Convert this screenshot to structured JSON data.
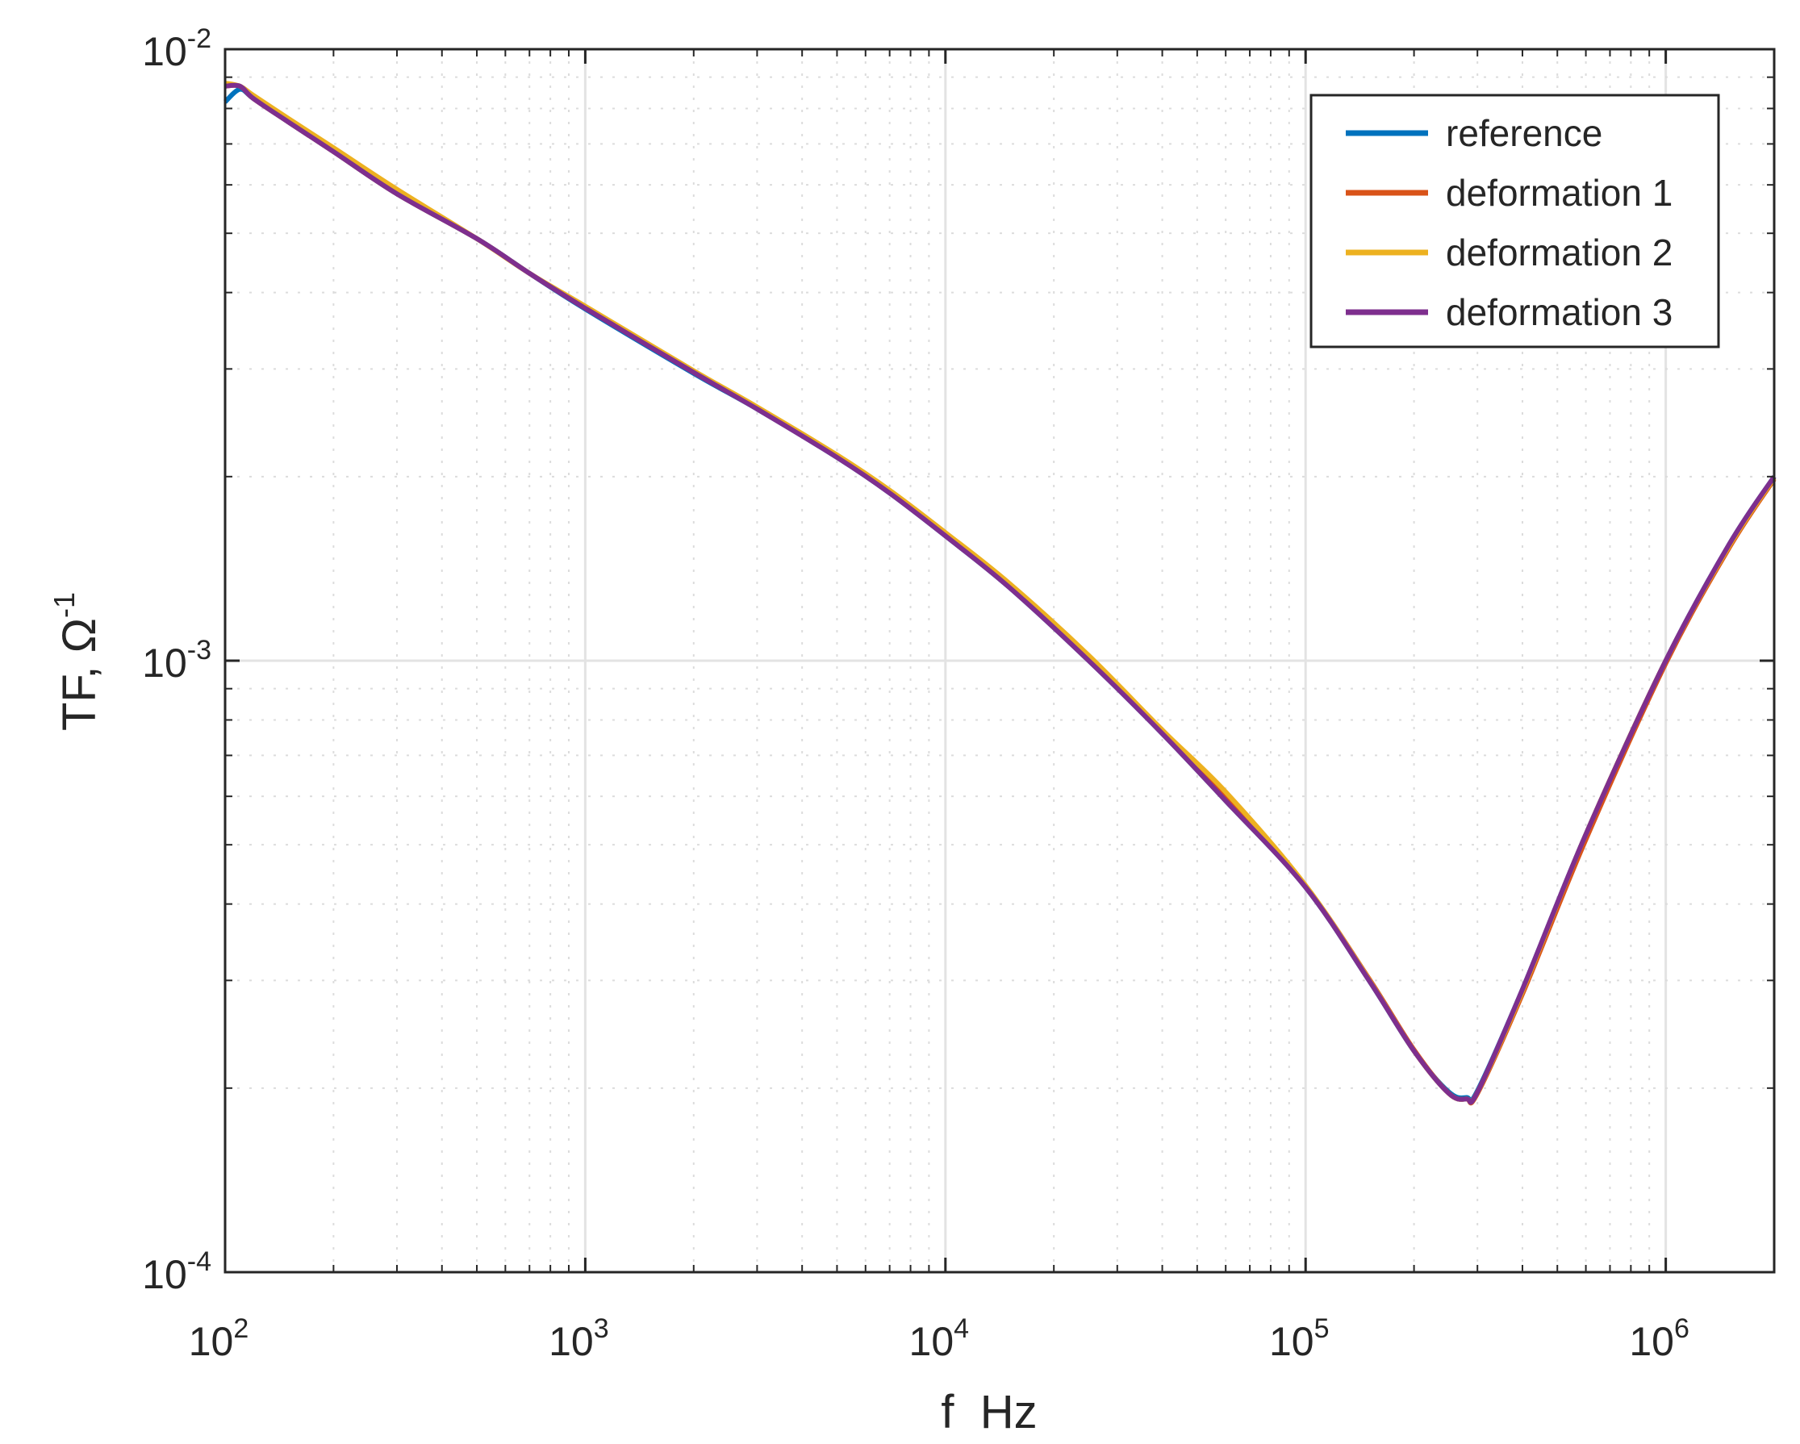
{
  "chart_data": {
    "type": "line",
    "xlabel": "f  Hz",
    "ylabel": "TF, Ω",
    "ylabel_superscript": "-1",
    "xscale": "log",
    "yscale": "log",
    "xlim": [
      100,
      2000000
    ],
    "ylim": [
      0.0001,
      0.01
    ],
    "grid": true,
    "legend_position": "top-right",
    "x_ticks": [
      {
        "value": 100,
        "base": "10",
        "exp": "2"
      },
      {
        "value": 1000,
        "base": "10",
        "exp": "3"
      },
      {
        "value": 10000,
        "base": "10",
        "exp": "4"
      },
      {
        "value": 100000,
        "base": "10",
        "exp": "5"
      },
      {
        "value": 1000000,
        "base": "10",
        "exp": "6"
      }
    ],
    "y_ticks": [
      {
        "value": 0.0001,
        "base": "10",
        "exp": "-4"
      },
      {
        "value": 0.001,
        "base": "10",
        "exp": "-3"
      },
      {
        "value": 0.01,
        "base": "10",
        "exp": "-2"
      }
    ],
    "x": [
      100,
      110,
      120,
      150,
      200,
      300,
      500,
      700,
      1000,
      2000,
      3000,
      5000,
      7000,
      10000,
      15000,
      25000,
      40000,
      60000,
      100000,
      150000,
      200000,
      250000,
      280000,
      300000,
      400000,
      600000,
      1000000,
      1500000,
      2000000
    ],
    "series": [
      {
        "name": "reference",
        "color": "#0072BD",
        "values": [
          0.0082,
          0.0086,
          0.0083,
          0.0076,
          0.0068,
          0.0058,
          0.0049,
          0.0043,
          0.00376,
          0.00295,
          0.00258,
          0.00215,
          0.00188,
          0.0016,
          0.00132,
          0.001,
          0.00076,
          0.00059,
          0.000426,
          0.0003,
          0.00023,
          0.000197,
          0.000193,
          0.000198,
          0.00029,
          0.00052,
          0.001,
          0.00155,
          0.002
        ]
      },
      {
        "name": "deformation 1",
        "color": "#D95319",
        "values": [
          0.0087,
          0.0087,
          0.0083,
          0.0076,
          0.0068,
          0.0058,
          0.0049,
          0.0043,
          0.00378,
          0.00297,
          0.00259,
          0.00216,
          0.00189,
          0.00161,
          0.00133,
          0.00101,
          0.00077,
          0.0006,
          0.000428,
          0.000302,
          0.000231,
          0.000196,
          0.000192,
          0.000196,
          0.000285,
          0.00051,
          0.00099,
          0.00153,
          0.00198
        ]
      },
      {
        "name": "deformation 2",
        "color": "#EDB120",
        "values": [
          0.0088,
          0.0087,
          0.0084,
          0.0077,
          0.0069,
          0.0059,
          0.0049,
          0.0043,
          0.0038,
          0.00298,
          0.0026,
          0.00217,
          0.0019,
          0.00162,
          0.00134,
          0.00102,
          0.00077,
          0.00061,
          0.000429,
          0.000301,
          0.00023,
          0.000196,
          0.000192,
          0.000197,
          0.000288,
          0.00052,
          0.001,
          0.00154,
          0.00199
        ]
      },
      {
        "name": "deformation 3",
        "color": "#7E2F8E",
        "values": [
          0.0087,
          0.0087,
          0.0083,
          0.0076,
          0.0068,
          0.0058,
          0.0049,
          0.0043,
          0.00377,
          0.00296,
          0.00258,
          0.00215,
          0.00188,
          0.0016,
          0.00132,
          0.001,
          0.00076,
          0.00059,
          0.000426,
          0.0003,
          0.00023,
          0.000196,
          0.000192,
          0.000197,
          0.00029,
          0.00052,
          0.001,
          0.00155,
          0.002
        ]
      }
    ]
  }
}
